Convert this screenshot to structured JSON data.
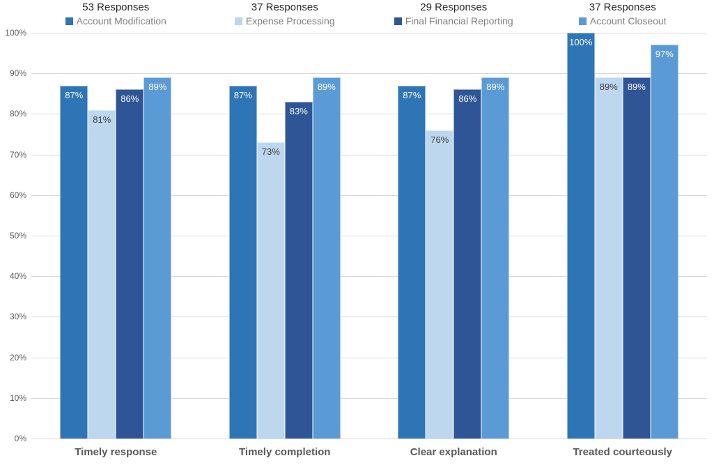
{
  "chart_data": {
    "type": "bar",
    "title": "",
    "xlabel": "",
    "ylabel": "",
    "categories": [
      "Timely response",
      "Timely completion",
      "Clear explanation",
      "Treated courteously"
    ],
    "series": [
      {
        "name": "Account Modification",
        "responses": "53 Responses",
        "color": "#2E75B6",
        "label_color": "#FFFFFF",
        "values": [
          87,
          87,
          87,
          100
        ],
        "labels": [
          "87%",
          "87%",
          "87%",
          "100%"
        ]
      },
      {
        "name": "Expense Processing",
        "responses": "37 Responses",
        "color": "#BDD7EE",
        "label_color": "#404040",
        "values": [
          81,
          73,
          76,
          89
        ],
        "labels": [
          "81%",
          "73%",
          "76%",
          "89%"
        ]
      },
      {
        "name": "Final Financial Reporting",
        "responses": "29 Responses",
        "color": "#2F5597",
        "label_color": "#FFFFFF",
        "values": [
          86,
          83,
          86,
          89
        ],
        "labels": [
          "86%",
          "83%",
          "86%",
          "89%"
        ]
      },
      {
        "name": "Account Closeout",
        "responses": "37 Responses",
        "color": "#5B9BD5",
        "label_color": "#FFFFFF",
        "values": [
          89,
          89,
          89,
          97
        ],
        "labels": [
          "89%",
          "89%",
          "89%",
          "97%"
        ]
      }
    ],
    "ylim": [
      0,
      100
    ],
    "ytick_step": 10,
    "ytick_labels": [
      "0%",
      "10%",
      "20%",
      "30%",
      "40%",
      "50%",
      "60%",
      "70%",
      "80%",
      "90%",
      "100%"
    ],
    "value_suffix": "%",
    "grid": true,
    "legend_position": "top"
  },
  "style": {
    "background": "#FFFFFF",
    "gridline_color": "#D9D9D9",
    "axis_text_color": "#595959",
    "legend_text_color": "#808080",
    "count_text_color": "#262626",
    "category_text_color": "#595959"
  }
}
